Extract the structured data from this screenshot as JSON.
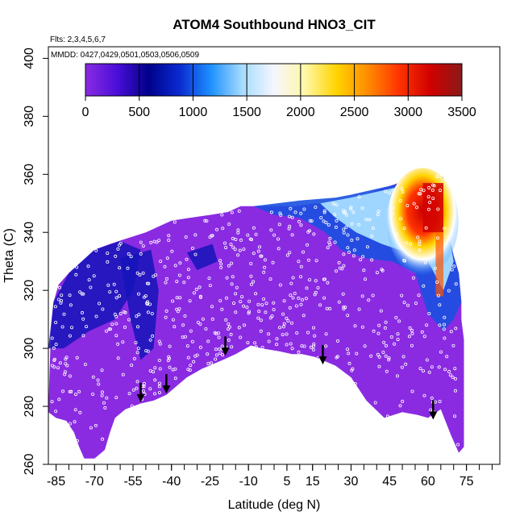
{
  "chart_data": {
    "type": "heatmap",
    "title": "ATOM4 Southbound HNO3_CIT",
    "flights_label": "Flts: 2,3,4,5,6,7",
    "mmdd_label": "MMDD: 0427,0429,0501,0503,0506,0509",
    "xlabel": "Latitude (deg N)",
    "ylabel": "Theta (C)",
    "xlim": [
      -88,
      88
    ],
    "ylim": [
      260,
      404
    ],
    "x_ticks": [
      -85,
      -70,
      -55,
      -40,
      -25,
      -10,
      5,
      15,
      30,
      45,
      60,
      75
    ],
    "y_ticks": [
      260,
      280,
      300,
      320,
      340,
      360,
      380,
      400
    ],
    "colorbar": {
      "min": 0,
      "max": 3500,
      "ticks": [
        0,
        500,
        1000,
        1500,
        2000,
        2500,
        3000,
        3500
      ],
      "colors": [
        "#8a2be2",
        "#4b0fd8",
        "#00008b",
        "#0a2ad0",
        "#1e90ff",
        "#a6dcff",
        "#f5f5ff",
        "#fff7a8",
        "#ffd400",
        "#ff8c00",
        "#ff3300",
        "#d00000",
        "#8b1a1a"
      ]
    },
    "coverage_boundary": {
      "upper": [
        [
          -88,
          279
        ],
        [
          -87,
          306
        ],
        [
          -86,
          316
        ],
        [
          -84,
          322
        ],
        [
          -80,
          326
        ],
        [
          -75,
          330
        ],
        [
          -70,
          334
        ],
        [
          -64,
          336
        ],
        [
          -57,
          338
        ],
        [
          -50,
          340
        ],
        [
          -45,
          342
        ],
        [
          -40,
          344
        ],
        [
          -33,
          345
        ],
        [
          -25,
          346
        ],
        [
          -18,
          347
        ],
        [
          -13,
          349
        ],
        [
          -8,
          349
        ],
        [
          0,
          349
        ],
        [
          8,
          349
        ],
        [
          16,
          350
        ],
        [
          24,
          350
        ],
        [
          30,
          351
        ],
        [
          35,
          353
        ],
        [
          45,
          356
        ],
        [
          55,
          359
        ],
        [
          63,
          360
        ],
        [
          66,
          359
        ],
        [
          67,
          345
        ],
        [
          68,
          339
        ],
        [
          70,
          332
        ],
        [
          72,
          326
        ],
        [
          73,
          316
        ],
        [
          73,
          310
        ],
        [
          74,
          303
        ],
        [
          74,
          289
        ],
        [
          74,
          266
        ]
      ],
      "lower": [
        [
          72,
          264
        ],
        [
          69,
          270
        ],
        [
          65,
          279
        ],
        [
          60,
          276
        ],
        [
          56,
          277
        ],
        [
          50,
          278
        ],
        [
          43,
          276
        ],
        [
          36,
          282
        ],
        [
          30,
          290
        ],
        [
          24,
          294
        ],
        [
          16,
          297
        ],
        [
          11,
          298
        ],
        [
          7,
          298
        ],
        [
          2,
          299
        ],
        [
          -5,
          300
        ],
        [
          -9,
          301
        ],
        [
          -15,
          298
        ],
        [
          -20,
          296
        ],
        [
          -28,
          293
        ],
        [
          -34,
          290
        ],
        [
          -38,
          287
        ],
        [
          -42,
          284
        ],
        [
          -47,
          282
        ],
        [
          -52,
          281
        ],
        [
          -58,
          279
        ],
        [
          -62,
          276
        ],
        [
          -64,
          271
        ],
        [
          -66,
          265
        ],
        [
          -70,
          262
        ],
        [
          -74,
          262
        ],
        [
          -76,
          266
        ],
        [
          -78,
          271
        ],
        [
          -81,
          275
        ],
        [
          -85,
          276
        ],
        [
          -88,
          278
        ]
      ]
    },
    "high_concentration_regions": [
      {
        "x_range": [
          42,
          70
        ],
        "theta_range": [
          325,
          360
        ],
        "peak_value": 3300
      }
    ],
    "tropopause_arrows_latitude": [
      -52,
      -42,
      -19,
      19,
      62
    ],
    "tropopause_arrows_theta": [
      282,
      285,
      298,
      295,
      276
    ]
  }
}
